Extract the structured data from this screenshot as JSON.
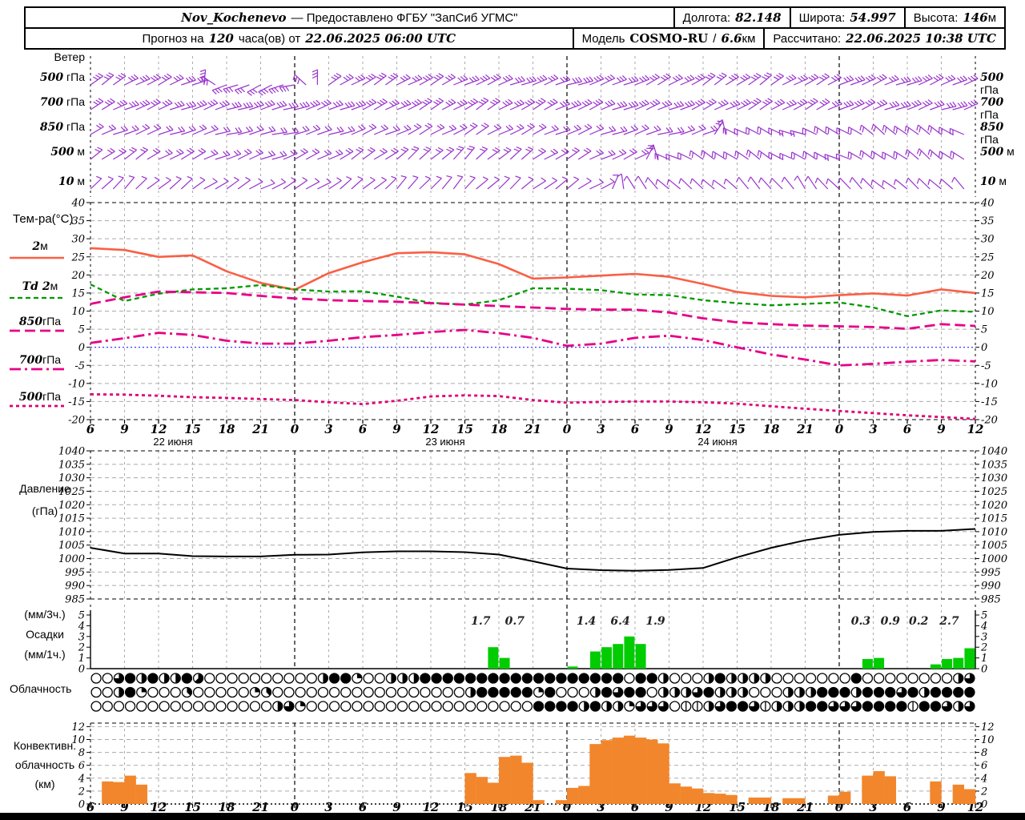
{
  "header": {
    "station": "Nov_Kochenevo",
    "provider": "— Предоставлено ФГБУ \"ЗапСиб УГМС\"",
    "lon_label": "Долгота:",
    "lon": "82.148",
    "lat_label": "Широта:",
    "lat": "54.997",
    "alt_label": "Высота:",
    "alt": "146",
    "alt_unit": "м",
    "forecast_label": "Прогноз на",
    "forecast_hours": "120",
    "forecast_suffix": "часа(ов) от",
    "forecast_datetime": "22.06.2025 06:00 UTC",
    "model_label": "Модель",
    "model": "COSMO-RU",
    "model_sep": "/",
    "model_res": "6.6",
    "model_res_unit": "км",
    "calc_label": "Рассчитано:",
    "calc_datetime": "22.06.2025 10:38 UTC"
  },
  "labels": {
    "wind_title": "Ветер",
    "temp_title": "Тем-ра(°C)",
    "pressure_1": "Давление",
    "pressure_2": "(гПа)",
    "precip_1": "(мм/3ч.)",
    "precip_2": "Осадки",
    "precip_3": "(мм/1ч.)",
    "cloud": "Облачность",
    "conv_1": "Конвективн.",
    "conv_2": "облачность",
    "conv_3": "(км)"
  },
  "colors": {
    "wind": "#9933cc",
    "t2m": "#fa5f45",
    "td": "#009900",
    "iso": "#e60087",
    "zero_line": "#2222ff",
    "pressure": "#000000",
    "precip": "#00cc00",
    "conv": "#f2862c",
    "grid": "#aaaaaa",
    "frame": "#000000"
  },
  "chart_data": {
    "type": "line",
    "time_axis": {
      "start_hour_utc": 6,
      "step_hours": 3,
      "n_ticks": 27,
      "hour_labels": [
        6,
        9,
        12,
        15,
        18,
        21,
        0,
        3,
        6,
        9,
        12,
        15,
        18,
        21,
        0,
        3,
        6,
        9,
        12,
        15,
        18,
        21,
        0,
        3,
        6,
        9,
        12
      ],
      "date_labels": [
        {
          "t": 6,
          "text": "22 июня"
        },
        {
          "t": 30,
          "text": "23 июня"
        },
        {
          "t": 54,
          "text": "24 июня"
        }
      ],
      "midnights_t": [
        18,
        42,
        66
      ],
      "total_hours": 78
    },
    "wind": {
      "levels": [
        {
          "num": "500",
          "unit": "гПа",
          "ticks": 3,
          "angles": [
            35,
            30,
            25,
            22,
            200,
            205,
            195,
            30,
            32,
            30,
            28,
            25,
            22,
            20,
            18,
            20,
            24,
            28,
            32,
            36,
            32,
            28,
            25,
            22,
            20,
            24,
            28
          ]
        },
        {
          "num": "700",
          "unit": "гПа",
          "ticks": 3,
          "angles": [
            28,
            25,
            22,
            20,
            18,
            15,
            18,
            20,
            24,
            28,
            30,
            32,
            30,
            28,
            25,
            22,
            20,
            22,
            25,
            28,
            30,
            28,
            25,
            22,
            20,
            18,
            22
          ]
        },
        {
          "num": "850",
          "unit": "гПа",
          "ticks": 2,
          "angles": [
            25,
            22,
            20,
            18,
            15,
            12,
            15,
            18,
            22,
            25,
            28,
            30,
            28,
            25,
            22,
            20,
            18,
            15,
            18,
            150,
            155,
            160,
            150,
            145,
            140,
            148,
            152
          ]
        },
        {
          "num": "500",
          "unit": "м",
          "ticks": 2,
          "angles": [
            38,
            34,
            30,
            26,
            22,
            20,
            24,
            28,
            34,
            38,
            42,
            45,
            40,
            34,
            30,
            26,
            22,
            156,
            150,
            144,
            148,
            152,
            156,
            150,
            144,
            140,
            146
          ]
        },
        {
          "num": "10",
          "unit": "м",
          "ticks": 1,
          "angles": [
            48,
            44,
            40,
            36,
            32,
            28,
            30,
            34,
            40,
            45,
            50,
            46,
            42,
            38,
            34,
            30,
            125,
            135,
            142,
            136,
            130,
            126,
            132,
            138,
            142,
            136,
            130
          ]
        }
      ]
    },
    "temperature": {
      "ylim": [
        -20,
        40
      ],
      "ytick_step": 5,
      "legend": [
        {
          "pre": "",
          "num": "2",
          "unit": "м",
          "style": "solid",
          "color": "t2m"
        },
        {
          "pre": "Td ",
          "num": "2",
          "unit": "м",
          "style": "dash",
          "color": "td"
        },
        {
          "pre": "",
          "num": "850",
          "unit": "гПа",
          "style": "longdash",
          "color": "iso"
        },
        {
          "pre": "",
          "num": "700",
          "unit": "гПа",
          "style": "dashdot",
          "color": "iso"
        },
        {
          "pre": "",
          "num": "500",
          "unit": "гПа",
          "style": "dot",
          "color": "iso"
        }
      ],
      "series": [
        {
          "name": "T 2м",
          "values": [
            27.4,
            26.9,
            25.0,
            25.4,
            21.0,
            17.8,
            15.9,
            20.5,
            23.5,
            26.0,
            26.3,
            25.7,
            23.0,
            19.0,
            19.3,
            19.8,
            20.3,
            19.5,
            17.5,
            15.3,
            14.2,
            13.8,
            14.4,
            14.9,
            14.3,
            16.0,
            15.0
          ]
        },
        {
          "name": "Td 2м",
          "values": [
            17.4,
            12.8,
            14.8,
            16.0,
            16.3,
            17.2,
            16.0,
            15.4,
            15.5,
            14.0,
            12.3,
            11.8,
            13.0,
            16.3,
            16.2,
            15.8,
            14.6,
            14.4,
            13.0,
            12.2,
            11.6,
            12.0,
            12.4,
            11.0,
            8.6,
            10.2,
            9.8
          ]
        },
        {
          "name": "T 850 гПа",
          "values": [
            12.0,
            13.8,
            15.4,
            15.2,
            15.0,
            14.2,
            13.5,
            13.0,
            12.8,
            12.6,
            12.2,
            11.8,
            11.4,
            11.0,
            10.6,
            10.4,
            10.4,
            9.6,
            8.0,
            6.9,
            6.4,
            6.0,
            5.8,
            5.6,
            5.1,
            6.4,
            5.9
          ]
        },
        {
          "name": "T 700 гПа",
          "values": [
            1.2,
            2.5,
            4.0,
            3.4,
            1.8,
            1.0,
            1.0,
            1.8,
            2.8,
            3.4,
            4.2,
            4.8,
            3.9,
            2.6,
            0.4,
            1.0,
            2.6,
            3.2,
            2.0,
            0.0,
            -2.0,
            -3.4,
            -5.0,
            -4.6,
            -4.0,
            -3.5,
            -3.9
          ]
        },
        {
          "name": "T 500 гПа",
          "values": [
            -13.0,
            -13.1,
            -13.4,
            -13.8,
            -14.0,
            -14.3,
            -14.6,
            -15.2,
            -15.7,
            -14.8,
            -13.6,
            -13.3,
            -13.5,
            -14.6,
            -15.3,
            -15.1,
            -15.0,
            -15.0,
            -15.2,
            -15.6,
            -16.3,
            -17.0,
            -17.6,
            -18.2,
            -18.8,
            -19.3,
            -19.8
          ]
        }
      ]
    },
    "pressure": {
      "ylim": [
        985,
        1040
      ],
      "ytick_step": 5,
      "values": [
        1004.0,
        1001.9,
        1001.9,
        1000.9,
        1000.8,
        1000.8,
        1001.4,
        1001.5,
        1002.3,
        1002.7,
        1002.7,
        1002.4,
        1001.5,
        999.0,
        996.3,
        995.7,
        995.5,
        995.8,
        996.5,
        1000.5,
        1004.0,
        1006.8,
        1008.8,
        1009.9,
        1010.3,
        1010.3,
        1011.0
      ]
    },
    "precipitation": {
      "ylim": [
        0,
        5
      ],
      "unit_bar": "мм/1ч",
      "unit_annot": "мм/3ч",
      "bars": [
        [
          35,
          2.0
        ],
        [
          36,
          1.0
        ],
        [
          42,
          0.2
        ],
        [
          44,
          1.6
        ],
        [
          45,
          2.0
        ],
        [
          46,
          2.3
        ],
        [
          47,
          3.0
        ],
        [
          48,
          2.3
        ],
        [
          68,
          0.9
        ],
        [
          69,
          1.0
        ],
        [
          74,
          0.4
        ],
        [
          75,
          0.9
        ],
        [
          76,
          1.0
        ],
        [
          77,
          1.9
        ]
      ],
      "annotations": [
        [
          34.4,
          "1.7"
        ],
        [
          37.4,
          "0.7"
        ],
        [
          43.7,
          "1.4"
        ],
        [
          46.7,
          "6.4"
        ],
        [
          49.8,
          "1.9"
        ],
        [
          67.9,
          "0.3"
        ],
        [
          70.5,
          "0.9"
        ],
        [
          73.0,
          "0.2"
        ],
        [
          75.7,
          "2.7"
        ]
      ]
    },
    "cloud_okta_rows": [
      "006848448500000000004882004448888888888888888880884000484444000000080000000046",
      "004820003000002300000000000000000488888280004868804446844400044488848886848888",
      "000000000000000046200000000000000000000888848442666011468861444886668888188646"
    ],
    "convective": {
      "ylim": [
        0,
        13
      ],
      "ytick_step": 2,
      "bars": [
        [
          1,
          3.5
        ],
        [
          2,
          3.4
        ],
        [
          3,
          4.4
        ],
        [
          4,
          3.0
        ],
        [
          33,
          4.8
        ],
        [
          34,
          4.2
        ],
        [
          35,
          3.3
        ],
        [
          36,
          7.3
        ],
        [
          37,
          7.5
        ],
        [
          38,
          6.4
        ],
        [
          39,
          0.6
        ],
        [
          41,
          0.6
        ],
        [
          42,
          2.5
        ],
        [
          43,
          2.8
        ],
        [
          44,
          9.3
        ],
        [
          45,
          9.9
        ],
        [
          46,
          10.3
        ],
        [
          47,
          10.6
        ],
        [
          48,
          10.3
        ],
        [
          49,
          10.0
        ],
        [
          50,
          9.4
        ],
        [
          51,
          3.2
        ],
        [
          52,
          2.7
        ],
        [
          53,
          2.4
        ],
        [
          54,
          1.7
        ],
        [
          55,
          1.6
        ],
        [
          56,
          1.4
        ],
        [
          58,
          1.0
        ],
        [
          59,
          1.0
        ],
        [
          61,
          0.9
        ],
        [
          62,
          0.9
        ],
        [
          65,
          1.3
        ],
        [
          66,
          1.9
        ],
        [
          68,
          4.4
        ],
        [
          69,
          5.1
        ],
        [
          70,
          4.3
        ],
        [
          74,
          3.5
        ],
        [
          76,
          3.0
        ],
        [
          77,
          2.3
        ]
      ]
    }
  }
}
